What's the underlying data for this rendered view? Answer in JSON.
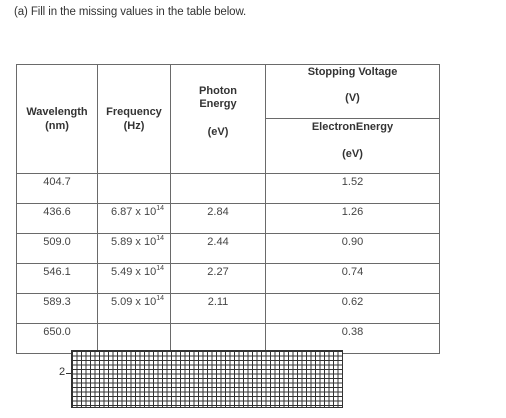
{
  "instruction": "(a) Fill in the missing values in the table below.",
  "table": {
    "headers": {
      "wavelength": {
        "name": "Wavelength",
        "unit": "(nm)"
      },
      "frequency": {
        "name": "Frequency",
        "unit": "(Hz)"
      },
      "photon_energy": {
        "name_line1": "Photon",
        "name_line2": "Energy",
        "unit": "(eV)"
      },
      "stopping_voltage": {
        "name": "Stopping Voltage",
        "unit": "(V)"
      },
      "electron_energy": {
        "name": "ElectronEnergy",
        "unit": "(eV)"
      }
    },
    "rows": [
      {
        "wavelength": "404.7",
        "frequency_base": "",
        "frequency_exp": "",
        "photon_energy": "",
        "stopping_voltage": "1.52"
      },
      {
        "wavelength": "436.6",
        "frequency_base": "6.87 x 10",
        "frequency_exp": "14",
        "photon_energy": "2.84",
        "stopping_voltage": "1.26"
      },
      {
        "wavelength": "509.0",
        "frequency_base": "5.89 x 10",
        "frequency_exp": "14",
        "photon_energy": "2.44",
        "stopping_voltage": "0.90"
      },
      {
        "wavelength": "546.1",
        "frequency_base": "5.49 x 10",
        "frequency_exp": "14",
        "photon_energy": "2.27",
        "stopping_voltage": "0.74"
      },
      {
        "wavelength": "589.3",
        "frequency_base": "5.09 x 10",
        "frequency_exp": "14",
        "photon_energy": "2.11",
        "stopping_voltage": "0.62"
      },
      {
        "wavelength": "650.0",
        "frequency_base": "",
        "frequency_exp": "",
        "photon_energy": "",
        "stopping_voltage": "0.38"
      }
    ]
  },
  "graph": {
    "tick_label": "2"
  }
}
